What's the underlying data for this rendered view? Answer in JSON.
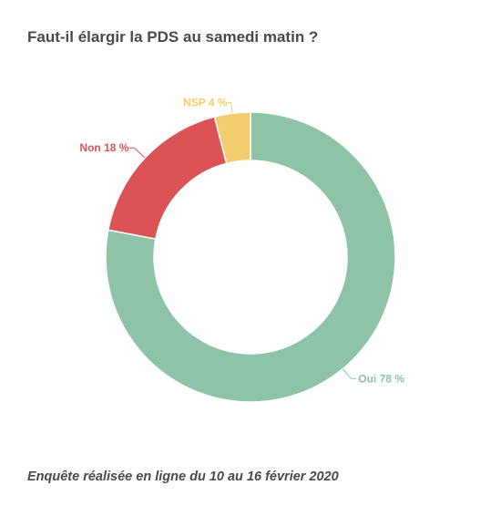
{
  "chart_data": {
    "type": "pie",
    "title": "Faut-il élargir la PDS au samedi matin ?",
    "footnote": "Enquête réalisée en ligne du 10 au 16 février 2020",
    "slices": [
      {
        "label": "Oui 78 %",
        "value": 78,
        "color": "#8ec3a7"
      },
      {
        "label": "Non 18 %",
        "value": 18,
        "color": "#dc5356"
      },
      {
        "label": "NSP 4 %",
        "value": 4,
        "color": "#f1cd6e"
      }
    ]
  }
}
